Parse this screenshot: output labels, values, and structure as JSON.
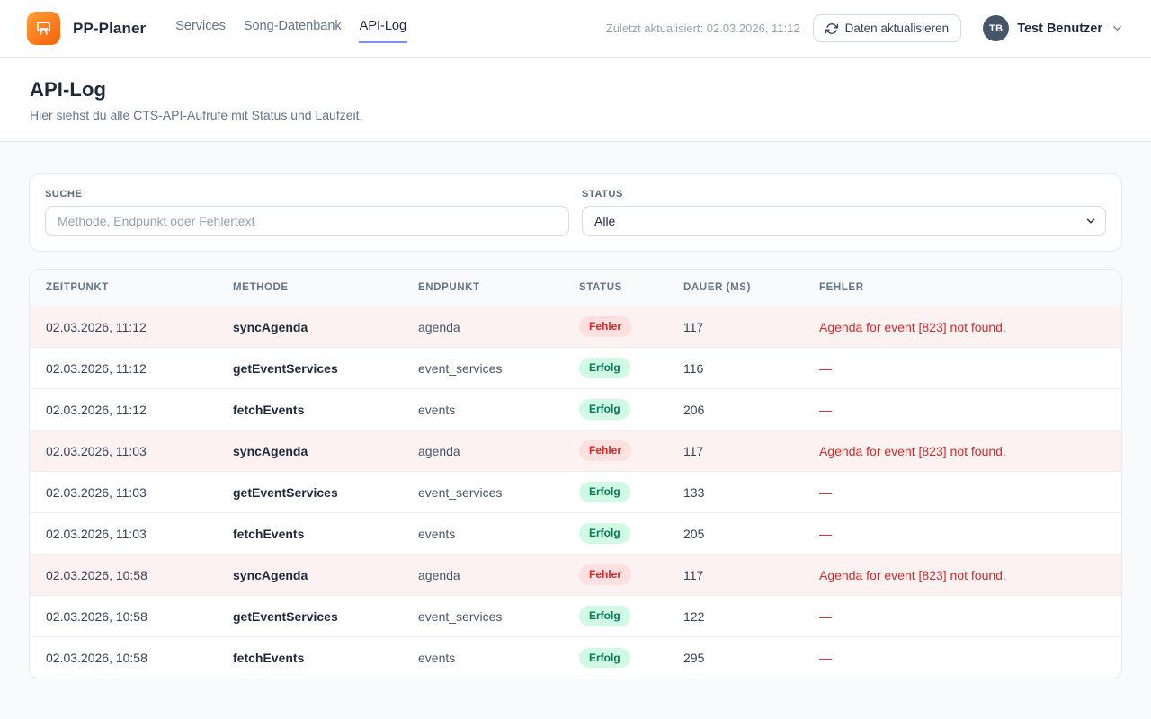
{
  "brand": {
    "name": "PP-Planer",
    "logo_icon": "presentation-board-icon",
    "logo_gradient": [
      "#ffa13b",
      "#f4650c"
    ]
  },
  "nav": {
    "items": [
      {
        "label": "Services",
        "active": false
      },
      {
        "label": "Song-Datenbank",
        "active": false
      },
      {
        "label": "API-Log",
        "active": true
      }
    ]
  },
  "topbar": {
    "last_updated": "Zuletzt aktualisiert: 02.03.2026, 11:12",
    "refresh_button_label": "Daten aktualisieren",
    "user": {
      "initials": "TB",
      "name": "Test Benutzer"
    }
  },
  "page": {
    "title": "API-Log",
    "subtitle": "Hier siehst du alle CTS-API-Aufrufe mit Status und Laufzeit."
  },
  "filters": {
    "search": {
      "label": "SUCHE",
      "placeholder": "Methode, Endpunkt oder Fehlertext",
      "value": ""
    },
    "status": {
      "label": "STATUS",
      "selected": "Alle"
    }
  },
  "table": {
    "columns": [
      "ZEITPUNKT",
      "METHODE",
      "ENDPUNKT",
      "STATUS",
      "DAUER (MS)",
      "FEHLER"
    ],
    "rows": [
      {
        "timestamp": "02.03.2026, 11:12",
        "method": "syncAgenda",
        "endpoint": "agenda",
        "status": "Fehler",
        "duration": "117",
        "error": "Agenda for event [823] not found."
      },
      {
        "timestamp": "02.03.2026, 11:12",
        "method": "getEventServices",
        "endpoint": "event_services",
        "status": "Erfolg",
        "duration": "116",
        "error": "—"
      },
      {
        "timestamp": "02.03.2026, 11:12",
        "method": "fetchEvents",
        "endpoint": "events",
        "status": "Erfolg",
        "duration": "206",
        "error": "—"
      },
      {
        "timestamp": "02.03.2026, 11:03",
        "method": "syncAgenda",
        "endpoint": "agenda",
        "status": "Fehler",
        "duration": "117",
        "error": "Agenda for event [823] not found."
      },
      {
        "timestamp": "02.03.2026, 11:03",
        "method": "getEventServices",
        "endpoint": "event_services",
        "status": "Erfolg",
        "duration": "133",
        "error": "—"
      },
      {
        "timestamp": "02.03.2026, 11:03",
        "method": "fetchEvents",
        "endpoint": "events",
        "status": "Erfolg",
        "duration": "205",
        "error": "—"
      },
      {
        "timestamp": "02.03.2026, 10:58",
        "method": "syncAgenda",
        "endpoint": "agenda",
        "status": "Fehler",
        "duration": "117",
        "error": "Agenda for event [823] not found."
      },
      {
        "timestamp": "02.03.2026, 10:58",
        "method": "getEventServices",
        "endpoint": "event_services",
        "status": "Erfolg",
        "duration": "122",
        "error": "—"
      },
      {
        "timestamp": "02.03.2026, 10:58",
        "method": "fetchEvents",
        "endpoint": "events",
        "status": "Erfolg",
        "duration": "295",
        "error": "—"
      }
    ]
  },
  "colors": {
    "accent_underline": "#818cf8",
    "error_text": "#dc2626",
    "error_row_bg": "#fdf2f2",
    "error_badge_bg": "#fde0e0",
    "success_badge_bg": "#d1fae5",
    "success_text": "#047857"
  }
}
